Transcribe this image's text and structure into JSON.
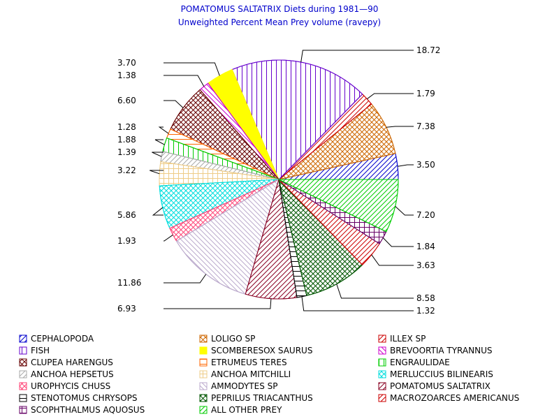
{
  "chart_data": {
    "type": "pie",
    "title": "POMATOMUS SALTATRIX Diets during 1981—90",
    "subtitle": "Unweighted Percent Mean Prey volume (ravepy)",
    "slices": [
      {
        "name": "CEPHALOPODA",
        "value": 3.5,
        "label": "3.50",
        "color": "#0000cc",
        "pattern": "diag"
      },
      {
        "name": "LOLIGO SP",
        "value": 7.38,
        "label": "7.38",
        "color": "#cc6600",
        "pattern": "cross"
      },
      {
        "name": "ILLEX SP",
        "value": 1.79,
        "label": "1.79",
        "color": "#cc0000",
        "pattern": "diag"
      },
      {
        "name": "FISH",
        "value": 18.72,
        "label": "18.72",
        "color": "#6600cc",
        "pattern": "vert"
      },
      {
        "name": "SCOMBERESOX SAURUS",
        "value": 3.7,
        "label": "3.70",
        "color": "#ffff00",
        "pattern": "solid"
      },
      {
        "name": "BREVOORTIA TYRANNUS",
        "value": 1.38,
        "label": "1.38",
        "color": "#cc00cc",
        "pattern": "back"
      },
      {
        "name": "CLUPEA HARENGUS",
        "value": 6.6,
        "label": "6.60",
        "color": "#660000",
        "pattern": "cross"
      },
      {
        "name": "ETRUMEUS TERES",
        "value": 1.28,
        "label": "1.28",
        "color": "#ff6600",
        "pattern": "horiz"
      },
      {
        "name": "ENGRAULIDAE",
        "value": 1.88,
        "label": "1.88",
        "color": "#00cc00",
        "pattern": "vert"
      },
      {
        "name": "ANCHOA HEPSETUS",
        "value": 1.39,
        "label": "1.39",
        "color": "#aaaaaa",
        "pattern": "diag"
      },
      {
        "name": "ANCHOA MITCHILLI",
        "value": 3.22,
        "label": "3.22",
        "color": "#eecc88",
        "pattern": "grid"
      },
      {
        "name": "MERLUCCIUS BILINEARIS",
        "value": 5.86,
        "label": "5.86",
        "color": "#00dddd",
        "pattern": "cross"
      },
      {
        "name": "UROPHYCIS CHUSS",
        "value": 1.93,
        "label": "1.93",
        "color": "#ff4477",
        "pattern": "cross"
      },
      {
        "name": "AMMODYTES SP",
        "value": 11.86,
        "label": "11.86",
        "color": "#bbaacc",
        "pattern": "back"
      },
      {
        "name": "POMATOMUS SALTATRIX",
        "value": 6.93,
        "label": "6.93",
        "color": "#880022",
        "pattern": "diag"
      },
      {
        "name": "STENOTOMUS CHRYSOPS",
        "value": 1.32,
        "label": "1.32",
        "color": "#000000",
        "pattern": "horiz"
      },
      {
        "name": "PEPRILUS TRIACANTHUS",
        "value": 8.58,
        "label": "8.58",
        "color": "#005500",
        "pattern": "cross"
      },
      {
        "name": "MACROZOARCES AMERICANUS",
        "value": 3.63,
        "label": "3.63",
        "color": "#cc0000",
        "pattern": "diag"
      },
      {
        "name": "SCOPHTHALMUS AQUOSUS",
        "value": 1.84,
        "label": "1.84",
        "color": "#660066",
        "pattern": "grid"
      },
      {
        "name": "ALL OTHER PREY",
        "value": 7.2,
        "label": "7.20",
        "color": "#00cc00",
        "pattern": "diag"
      }
    ],
    "legend_placement": "bottom"
  }
}
